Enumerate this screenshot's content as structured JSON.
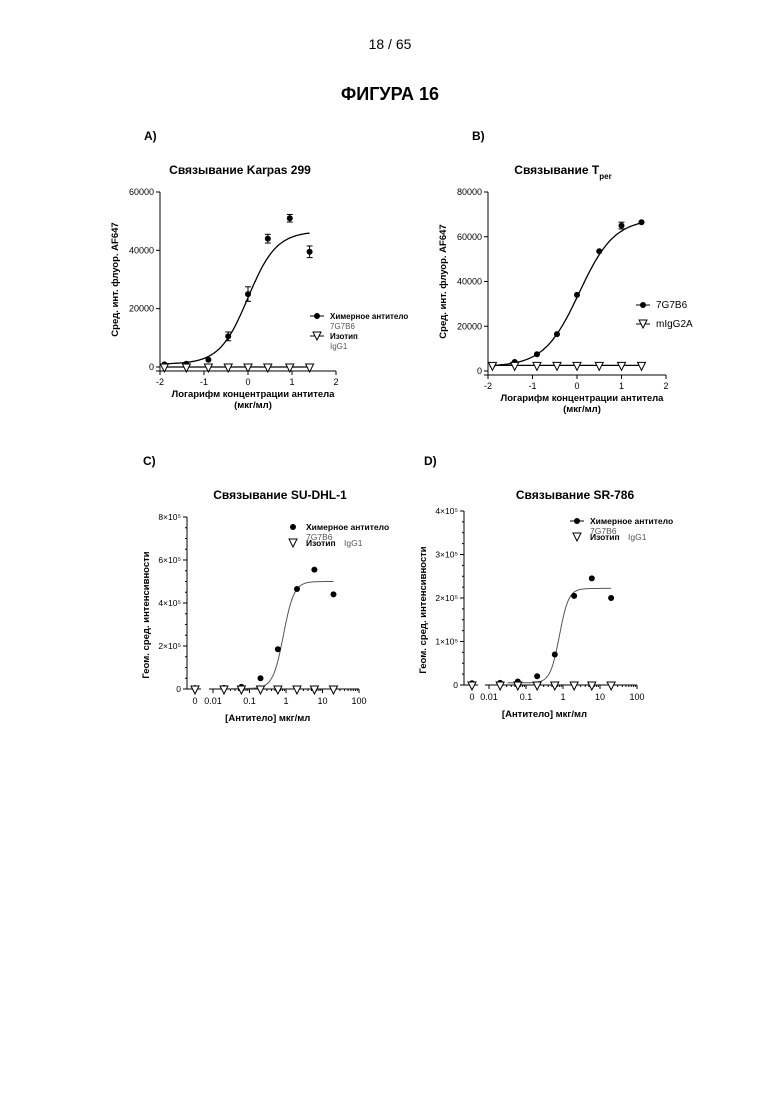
{
  "page": {
    "number": "18 / 65",
    "figure_title": "ФИГУРА 16"
  },
  "chart_data": [
    {
      "panel_label": "A)",
      "type": "line",
      "title": "Связывание Karpas 299",
      "xlabel": "Логарифм концентрации антитела",
      "xlabel2": "(мкг/мл)",
      "ylabel": "Сред. инт. флуор. AF647",
      "xlim": [
        -2,
        2
      ],
      "ylim": [
        0,
        60000
      ],
      "xticks": [
        "-2",
        "-1",
        "0",
        "1",
        "2"
      ],
      "yticks": [
        "0",
        "20000",
        "40000",
        "60000"
      ],
      "legend_position": "right",
      "series": [
        {
          "name": "Химерное антитело",
          "name2": "7G7B6",
          "marker": "circle",
          "x": [
            -1.9,
            -1.4,
            -0.9,
            -0.45,
            0.0,
            0.45,
            0.95,
            1.4
          ],
          "y": [
            900,
            1100,
            2500,
            10500,
            25000,
            44000,
            51000,
            39500
          ],
          "err": [
            0,
            0,
            0,
            1500,
            2500,
            1500,
            1300,
            2000
          ],
          "fit": {
            "bottom": 1000,
            "top": 46500,
            "ec50_log": 0.0,
            "hill": 1.35
          }
        },
        {
          "name": "Изотип",
          "name2": "IgG1",
          "marker": "triangle",
          "x": [
            -1.9,
            -1.4,
            -0.9,
            -0.45,
            0.0,
            0.45,
            0.95,
            1.4
          ],
          "y": [
            0,
            0,
            0,
            0,
            0,
            0,
            0,
            0
          ]
        }
      ]
    },
    {
      "panel_label": "B)",
      "type": "line",
      "title": "Связывание T",
      "title_sub": "per",
      "xlabel": "Логарифм концентрации антитела",
      "xlabel2": "(мкг/мл)",
      "ylabel": "Сред. инт. флуор. AF647",
      "xlim": [
        -2,
        2
      ],
      "ylim": [
        0,
        80000
      ],
      "xticks": [
        "-2",
        "-1",
        "0",
        "1",
        "2"
      ],
      "yticks": [
        "0",
        "20000",
        "40000",
        "60000",
        "80000"
      ],
      "legend_position": "right",
      "series": [
        {
          "name": "7G7B6",
          "marker": "circle",
          "x": [
            -1.9,
            -1.4,
            -0.9,
            -0.45,
            0.0,
            0.5,
            1.0,
            1.45
          ],
          "y": [
            2500,
            4000,
            7500,
            16500,
            34000,
            53500,
            65000,
            66500
          ],
          "err": [
            0,
            0,
            0,
            0,
            0,
            0,
            1500,
            0
          ],
          "fit": {
            "bottom": 2000,
            "top": 68000,
            "ec50_log": 0.05,
            "hill": 1.1
          }
        },
        {
          "name": "mIgG2A",
          "marker": "triangle",
          "x": [
            -1.9,
            -1.4,
            -0.9,
            -0.45,
            0.0,
            0.5,
            1.0,
            1.45
          ],
          "y": [
            2500,
            2500,
            2500,
            2500,
            2500,
            2500,
            2500,
            2500
          ],
          "fit_flat": 2500
        }
      ]
    },
    {
      "panel_label": "C)",
      "type": "scatter",
      "title": "Связывание SU-DHL-1",
      "xlabel": "[Антитело] мкг/мл",
      "ylabel": "Геом. сред. интенсивности",
      "x_scale": "log",
      "xticks": [
        "0",
        "0.01",
        "0.1",
        "1",
        "10",
        "100"
      ],
      "yticks": [
        "0",
        "2×10⁵",
        "4×10⁵",
        "6×10⁵",
        "8×10⁵"
      ],
      "ylim": [
        0,
        800000
      ],
      "legend_position": "top-right",
      "series": [
        {
          "name": "Химерное антитело",
          "name2": "7G7B6",
          "marker": "circle",
          "x": [
            0,
            0.02,
            0.06,
            0.2,
            0.6,
            2,
            6,
            20
          ],
          "y": [
            4000,
            5000,
            10000,
            50000,
            185000,
            465000,
            555000,
            440000
          ],
          "fit": {
            "bottom": 2000,
            "top": 500000,
            "ec50": 0.85,
            "hill": 3.0
          }
        },
        {
          "name": "Изотип",
          "name2": "IgG1",
          "marker": "triangle",
          "x": [
            0,
            0.02,
            0.06,
            0.2,
            0.6,
            2,
            6,
            20
          ],
          "y": [
            0,
            0,
            0,
            0,
            0,
            0,
            0,
            0
          ]
        }
      ]
    },
    {
      "panel_label": "D)",
      "type": "scatter",
      "title": "Связывание SR-786",
      "xlabel": "[Антитело] мкг/мл",
      "ylabel": "Геом. сред. интенсивности",
      "x_scale": "log",
      "xticks": [
        "0",
        "0.01",
        "0.1",
        "1",
        "10",
        "100"
      ],
      "yticks": [
        "0",
        "1×10⁵",
        "2×10⁵",
        "3×10⁵",
        "4×10⁵"
      ],
      "ylim": [
        0,
        400000
      ],
      "legend_position": "top-right",
      "series": [
        {
          "name": "Химерное антитело",
          "name2": "7G7B6",
          "marker": "circle",
          "x": [
            0,
            0.02,
            0.06,
            0.2,
            0.6,
            2,
            6,
            20
          ],
          "y": [
            4000,
            5000,
            8000,
            20000,
            70000,
            205000,
            245000,
            200000
          ],
          "fit": {
            "bottom": 5000,
            "top": 222000,
            "ec50": 0.8,
            "hill": 3.5
          }
        },
        {
          "name": "Изотип",
          "name2": "IgG1",
          "marker": "triangle",
          "x": [
            0,
            0.02,
            0.06,
            0.2,
            0.6,
            2,
            6,
            20
          ],
          "y": [
            0,
            0,
            0,
            0,
            0,
            0,
            0,
            0
          ]
        }
      ]
    }
  ]
}
